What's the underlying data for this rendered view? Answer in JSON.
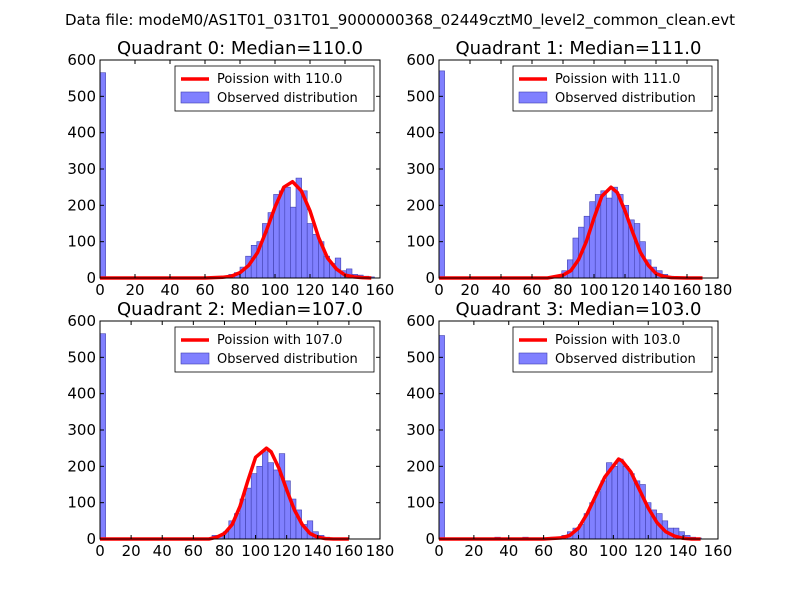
{
  "figure": {
    "suptitle": "Data file: modeM0/AS1T01_031T01_9000000368_02449cztM0_level2_common_clean.evt"
  },
  "chart_data": [
    {
      "type": "bar",
      "title": "Quadrant 0: Median=110.0",
      "xlim": [
        0,
        160
      ],
      "ylim": [
        0,
        600
      ],
      "xticks": [
        0,
        20,
        40,
        60,
        80,
        100,
        120,
        140,
        160
      ],
      "yticks": [
        0,
        100,
        200,
        300,
        400,
        500,
        600
      ],
      "legend": {
        "position": "top-right",
        "line_label": "Poission with 110.0",
        "bar_label": "Observed distribution"
      },
      "bin_width": 3.2,
      "histogram": {
        "bin_starts": [
          0,
          70.4,
          73.6,
          76.8,
          80.0,
          83.2,
          86.4,
          89.6,
          92.8,
          96.0,
          99.2,
          102.4,
          105.6,
          108.8,
          112.0,
          115.2,
          118.4,
          121.6,
          124.8,
          128.0,
          131.2,
          134.4,
          137.6,
          140.8,
          144.0,
          147.2,
          150.4,
          153.6
        ],
        "counts": [
          565,
          5,
          10,
          15,
          30,
          60,
          90,
          100,
          150,
          180,
          230,
          240,
          250,
          195,
          275,
          240,
          150,
          120,
          100,
          60,
          40,
          55,
          20,
          25,
          10,
          8,
          5,
          3
        ]
      },
      "poisson": {
        "mean": 110,
        "x": [
          0,
          40,
          60,
          70,
          75,
          80,
          85,
          90,
          95,
          100,
          105,
          110,
          115,
          120,
          125,
          130,
          135,
          140,
          145,
          150,
          155
        ],
        "y": [
          0,
          0,
          0,
          2,
          5,
          15,
          35,
          70,
          130,
          195,
          250,
          265,
          240,
          185,
          110,
          55,
          25,
          8,
          3,
          1,
          0
        ]
      }
    },
    {
      "type": "bar",
      "title": "Quadrant 1: Median=111.0",
      "xlim": [
        0,
        180
      ],
      "ylim": [
        0,
        600
      ],
      "xticks": [
        0,
        20,
        40,
        60,
        80,
        100,
        120,
        140,
        160,
        180
      ],
      "yticks": [
        0,
        100,
        200,
        300,
        400,
        500,
        600
      ],
      "legend": {
        "position": "top-right",
        "line_label": "Poission with 111.0",
        "bar_label": "Observed distribution"
      },
      "bin_width": 3.6,
      "histogram": {
        "bin_starts": [
          0,
          75.6,
          79.2,
          82.8,
          86.4,
          90.0,
          93.6,
          97.2,
          100.8,
          104.4,
          108.0,
          111.6,
          115.2,
          118.8,
          122.4,
          126.0,
          129.6,
          133.2,
          136.8,
          140.4,
          144.0,
          147.6,
          151.2
        ],
        "counts": [
          570,
          5,
          20,
          50,
          110,
          140,
          170,
          210,
          230,
          240,
          220,
          250,
          230,
          200,
          160,
          150,
          100,
          50,
          30,
          20,
          10,
          5,
          3
        ]
      },
      "poisson": {
        "mean": 111,
        "x": [
          0,
          40,
          70,
          80,
          85,
          90,
          95,
          100,
          105,
          111,
          115,
          120,
          125,
          130,
          135,
          140,
          145,
          150,
          160,
          170
        ],
        "y": [
          0,
          0,
          0,
          8,
          20,
          50,
          100,
          165,
          225,
          250,
          235,
          185,
          125,
          70,
          35,
          12,
          4,
          1,
          0,
          0
        ]
      }
    },
    {
      "type": "bar",
      "title": "Quadrant 2: Median=107.0",
      "xlim": [
        0,
        180
      ],
      "ylim": [
        0,
        600
      ],
      "xticks": [
        0,
        20,
        40,
        60,
        80,
        100,
        120,
        140,
        160,
        180
      ],
      "yticks": [
        0,
        100,
        200,
        300,
        400,
        500,
        600
      ],
      "legend": {
        "position": "top-right",
        "line_label": "Poission with 107.0",
        "bar_label": "Observed distribution"
      },
      "bin_width": 3.6,
      "histogram": {
        "bin_starts": [
          0,
          72.0,
          75.6,
          79.2,
          82.8,
          86.4,
          90.0,
          93.6,
          97.2,
          100.8,
          104.4,
          108.0,
          111.6,
          115.2,
          118.8,
          122.4,
          126.0,
          129.6,
          133.2,
          136.8,
          140.4,
          144.0,
          147.6
        ],
        "counts": [
          565,
          10,
          10,
          20,
          50,
          70,
          110,
          140,
          180,
          200,
          240,
          210,
          190,
          235,
          160,
          110,
          80,
          40,
          50,
          20,
          10,
          5,
          3
        ]
      },
      "poisson": {
        "mean": 107,
        "x": [
          0,
          40,
          70,
          75,
          80,
          85,
          90,
          95,
          100,
          107,
          110,
          115,
          120,
          125,
          130,
          135,
          140,
          145,
          150,
          160
        ],
        "y": [
          0,
          0,
          0,
          5,
          15,
          40,
          90,
          160,
          225,
          250,
          240,
          195,
          135,
          80,
          40,
          15,
          5,
          1,
          0,
          0
        ]
      }
    },
    {
      "type": "bar",
      "title": "Quadrant 3: Median=103.0",
      "xlim": [
        0,
        160
      ],
      "ylim": [
        0,
        600
      ],
      "xticks": [
        0,
        20,
        40,
        60,
        80,
        100,
        120,
        140,
        160
      ],
      "yticks": [
        0,
        100,
        200,
        300,
        400,
        500,
        600
      ],
      "legend": {
        "position": "top-right",
        "line_label": "Poission with 103.0",
        "bar_label": "Observed distribution"
      },
      "bin_width": 3.2,
      "histogram": {
        "bin_starts": [
          0,
          32.0,
          48.0,
          64.0,
          70.4,
          73.6,
          76.8,
          80.0,
          83.2,
          86.4,
          89.6,
          92.8,
          96.0,
          99.2,
          102.4,
          105.6,
          108.8,
          112.0,
          115.2,
          118.4,
          121.6,
          124.8,
          128.0,
          131.2,
          134.4,
          137.6,
          140.8,
          144.0,
          147.2
        ],
        "counts": [
          560,
          5,
          5,
          5,
          10,
          20,
          30,
          40,
          70,
          100,
          130,
          160,
          210,
          200,
          220,
          200,
          180,
          160,
          150,
          100,
          80,
          70,
          50,
          30,
          30,
          20,
          10,
          5,
          3
        ]
      },
      "poisson": {
        "mean": 103,
        "x": [
          0,
          40,
          60,
          70,
          75,
          80,
          85,
          90,
          95,
          103,
          105,
          110,
          115,
          120,
          125,
          130,
          135,
          140,
          145,
          150
        ],
        "y": [
          0,
          0,
          0,
          3,
          10,
          30,
          70,
          120,
          170,
          220,
          215,
          185,
          135,
          85,
          45,
          20,
          8,
          2,
          0,
          0
        ]
      }
    }
  ]
}
